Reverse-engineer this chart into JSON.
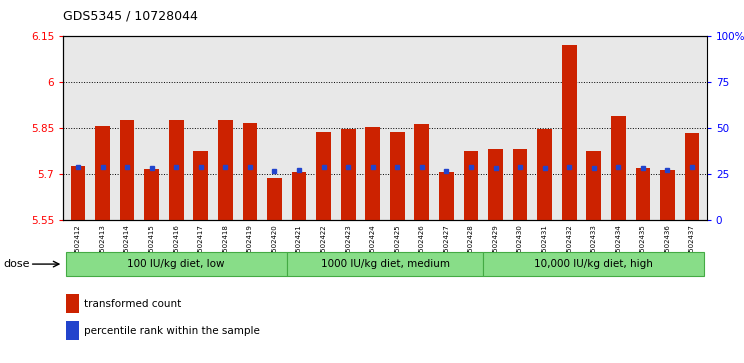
{
  "title": "GDS5345 / 10728044",
  "samples": [
    "GSM1502412",
    "GSM1502413",
    "GSM1502414",
    "GSM1502415",
    "GSM1502416",
    "GSM1502417",
    "GSM1502418",
    "GSM1502419",
    "GSM1502420",
    "GSM1502421",
    "GSM1502422",
    "GSM1502423",
    "GSM1502424",
    "GSM1502425",
    "GSM1502426",
    "GSM1502427",
    "GSM1502428",
    "GSM1502429",
    "GSM1502430",
    "GSM1502431",
    "GSM1502432",
    "GSM1502433",
    "GSM1502434",
    "GSM1502435",
    "GSM1502436",
    "GSM1502437"
  ],
  "bar_values": [
    5.725,
    5.855,
    5.875,
    5.715,
    5.875,
    5.775,
    5.875,
    5.865,
    5.685,
    5.705,
    5.838,
    5.845,
    5.852,
    5.838,
    5.862,
    5.705,
    5.775,
    5.782,
    5.782,
    5.848,
    6.12,
    5.775,
    5.89,
    5.718,
    5.712,
    5.835
  ],
  "percentile_values": [
    5.722,
    5.723,
    5.722,
    5.718,
    5.722,
    5.721,
    5.722,
    5.721,
    5.708,
    5.712,
    5.721,
    5.721,
    5.721,
    5.721,
    5.721,
    5.708,
    5.721,
    5.72,
    5.721,
    5.72,
    5.721,
    5.72,
    5.721,
    5.718,
    5.712,
    5.721
  ],
  "groups": [
    {
      "label": "100 IU/kg diet, low",
      "start": 0,
      "end": 9
    },
    {
      "label": "1000 IU/kg diet, medium",
      "start": 9,
      "end": 17
    },
    {
      "label": "10,000 IU/kg diet, high",
      "start": 17,
      "end": 26
    }
  ],
  "ylim_left": [
    5.55,
    6.15
  ],
  "yticks_left": [
    5.55,
    5.7,
    5.85,
    6.0,
    6.15
  ],
  "ytick_labels_left": [
    "5.55",
    "5.7",
    "5.85",
    "6",
    "6.15"
  ],
  "ylim_right": [
    0,
    100
  ],
  "yticks_right": [
    0,
    25,
    50,
    75,
    100
  ],
  "ytick_labels_right": [
    "0",
    "25",
    "50",
    "75",
    "100%"
  ],
  "bar_color": "#cc2200",
  "percentile_color": "#2244cc",
  "group_color": "#88dd88",
  "group_border_color": "#44aa44",
  "bg_color": "#e8e8e8",
  "legend_items": [
    "transformed count",
    "percentile rank within the sample"
  ],
  "dose_label": "dose"
}
